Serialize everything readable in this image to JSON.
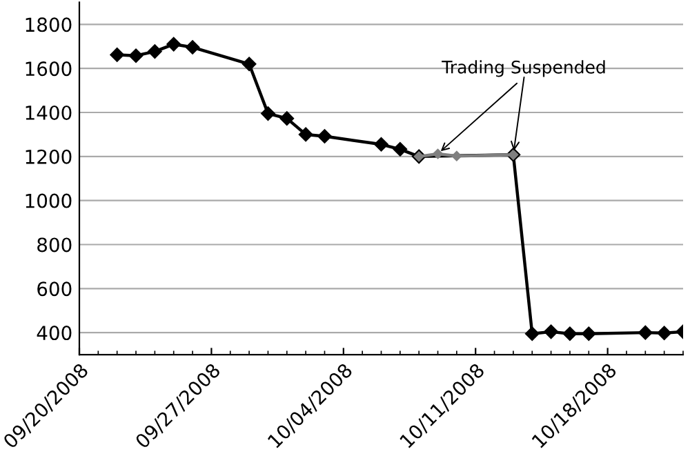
{
  "chart_data": {
    "type": "line",
    "series": [
      {
        "color": "#000000",
        "x": [
          "2008-09-22",
          "2008-09-23",
          "2008-09-24",
          "2008-09-25",
          "2008-09-26",
          "2008-09-29",
          "2008-09-30",
          "2008-10-01",
          "2008-10-02",
          "2008-10-03",
          "2008-10-06",
          "2008-10-07",
          "2008-10-08",
          "2008-10-13",
          "2008-10-14",
          "2008-10-15",
          "2008-10-16",
          "2008-10-17",
          "2008-10-20",
          "2008-10-21",
          "2008-10-22"
        ],
        "values": [
          1662,
          1658,
          1677,
          1710,
          1696,
          1620,
          1395,
          1373,
          1300,
          1292,
          1255,
          1233,
          1200,
          1208,
          395,
          404,
          395,
          395,
          400,
          398,
          404
        ]
      },
      {
        "color": "#808080",
        "x": [
          "2008-10-08",
          "2008-10-09",
          "2008-10-10",
          "2008-10-13"
        ],
        "values": [
          1200,
          1212,
          1202,
          1208
        ]
      }
    ],
    "annotations": [
      {
        "text": "Trading Suspended",
        "x": "2008-10-09",
        "y": 1212
      }
    ],
    "xlim": [
      "2008-09-20",
      "2008-10-22"
    ],
    "xticks": [
      {
        "value": "2008-09-20",
        "label": "09/20/2008"
      },
      {
        "value": "2008-09-27",
        "label": "09/27/2008"
      },
      {
        "value": "2008-10-04",
        "label": "10/04/2008"
      },
      {
        "value": "2008-10-11",
        "label": "10/11/2008"
      },
      {
        "value": "2008-10-18",
        "label": "10/18/2008"
      }
    ],
    "ylim": [
      300,
      1900
    ],
    "yticks": [
      400,
      600,
      800,
      1000,
      1200,
      1400,
      1600,
      1800
    ],
    "grid": "y",
    "legend": false,
    "marker": "diamond",
    "line_style": "solid"
  }
}
